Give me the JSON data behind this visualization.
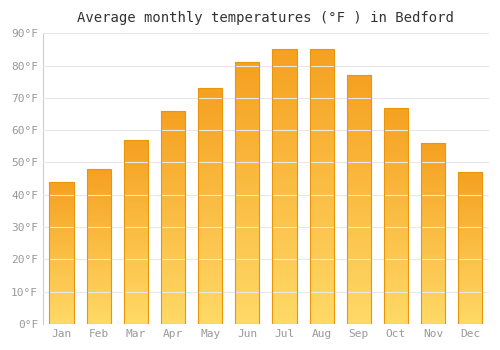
{
  "title": "Average monthly temperatures (°F ) in Bedford",
  "months": [
    "Jan",
    "Feb",
    "Mar",
    "Apr",
    "May",
    "Jun",
    "Jul",
    "Aug",
    "Sep",
    "Oct",
    "Nov",
    "Dec"
  ],
  "values": [
    44,
    48,
    57,
    66,
    73,
    81,
    85,
    85,
    77,
    67,
    56,
    47
  ],
  "bar_color_top": "#F5A623",
  "bar_color_mid": "#FFD966",
  "ylim": [
    0,
    90
  ],
  "yticks": [
    0,
    10,
    20,
    30,
    40,
    50,
    60,
    70,
    80,
    90
  ],
  "ytick_labels": [
    "0°F",
    "10°F",
    "20°F",
    "30°F",
    "40°F",
    "50°F",
    "60°F",
    "70°F",
    "80°F",
    "90°F"
  ],
  "background_color": "#ffffff",
  "grid_color": "#e8e8e8",
  "bar_border_color": "#E8960A",
  "title_fontsize": 10,
  "tick_fontsize": 8,
  "tick_color": "#999999",
  "figsize": [
    5.0,
    3.5
  ],
  "dpi": 100,
  "bar_width": 0.65
}
